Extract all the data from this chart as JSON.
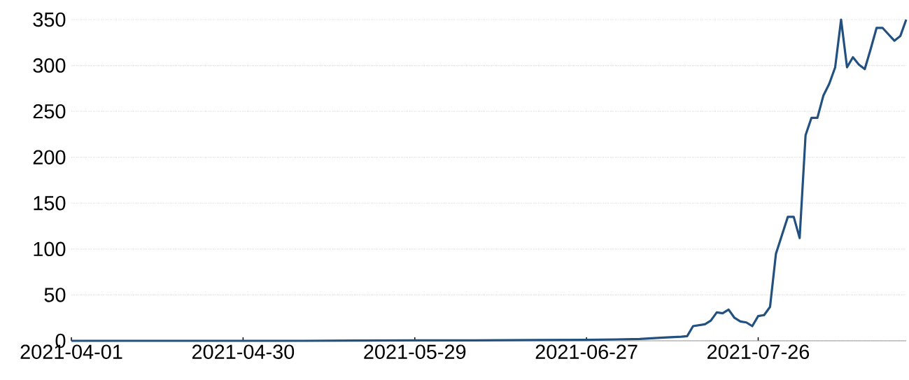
{
  "chart_data": {
    "type": "line",
    "color": "#22507f",
    "line_style": "solid",
    "marker": "none",
    "grid": "y",
    "x": [
      "2021-04-01",
      "2021-04-10",
      "2021-04-20",
      "2021-04-30",
      "2021-05-10",
      "2021-05-20",
      "2021-05-29",
      "2021-06-08",
      "2021-06-18",
      "2021-06-27",
      "2021-07-02",
      "2021-07-06",
      "2021-07-10",
      "2021-07-13",
      "2021-07-14",
      "2021-07-15",
      "2021-07-16",
      "2021-07-17",
      "2021-07-18",
      "2021-07-19",
      "2021-07-20",
      "2021-07-21",
      "2021-07-22",
      "2021-07-23",
      "2021-07-24",
      "2021-07-25",
      "2021-07-26",
      "2021-07-27",
      "2021-07-28",
      "2021-07-29",
      "2021-07-30",
      "2021-07-31",
      "2021-08-01",
      "2021-08-02",
      "2021-08-03",
      "2021-08-04",
      "2021-08-05",
      "2021-08-06",
      "2021-08-07",
      "2021-08-08",
      "2021-08-09",
      "2021-08-10",
      "2021-08-11",
      "2021-08-12",
      "2021-08-13",
      "2021-08-14",
      "2021-08-15",
      "2021-08-16",
      "2021-08-17",
      "2021-08-18",
      "2021-08-19",
      "2021-08-20"
    ],
    "values": [
      0,
      0,
      0,
      0,
      0,
      0.3,
      0.5,
      0.5,
      0.8,
      1,
      1.5,
      2,
      3.5,
      4.5,
      5,
      16,
      17,
      18,
      22,
      31,
      30,
      34,
      25,
      21,
      20,
      16,
      27,
      28,
      37,
      95,
      115,
      135,
      135,
      112,
      224,
      243,
      243,
      267,
      280,
      298,
      350,
      298,
      309,
      301,
      296,
      318,
      341,
      341,
      334,
      327,
      332,
      350
    ],
    "xlim": [
      "2021-04-01",
      "2021-08-20"
    ],
    "ylim": [
      0,
      350
    ],
    "xticks": [
      {
        "value": "2021-04-01",
        "label": "2021-04-01"
      },
      {
        "value": "2021-04-30",
        "label": "2021-04-30"
      },
      {
        "value": "2021-05-29",
        "label": "2021-05-29"
      },
      {
        "value": "2021-06-27",
        "label": "2021-06-27"
      },
      {
        "value": "2021-07-26",
        "label": "2021-07-26"
      }
    ],
    "yticks": [
      0,
      50,
      100,
      150,
      200,
      250,
      300,
      350
    ]
  }
}
